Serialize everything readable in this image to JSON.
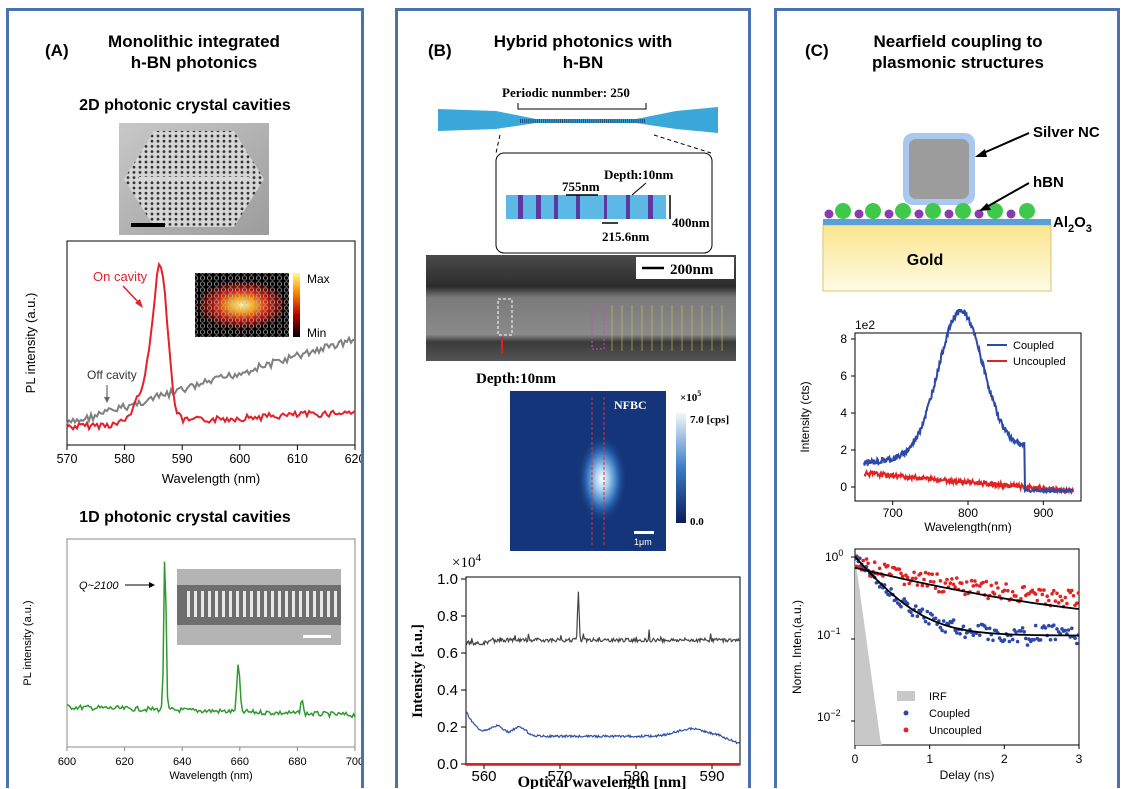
{
  "panelA": {
    "label": "(A)",
    "title_line1": "Monolithic integrated",
    "title_line2": "h-BN photonics",
    "sub1": "2D photonic crystal cavities",
    "sub2": "1D photonic crystal cavities",
    "plot1": {
      "ylabel": "PL intensity (a.u.)",
      "xlabel": "Wavelength (nm)",
      "xticks": [
        "570",
        "580",
        "590",
        "600",
        "610",
        "620"
      ],
      "on_label": "On cavity",
      "off_label": "Off cavity",
      "cbar_max": "Max",
      "cbar_min": "Min"
    },
    "plot2": {
      "ylabel": "PL intensity (a.u.)",
      "xlabel": "Wavelength (nm)",
      "xticks": [
        "600",
        "620",
        "640",
        "660",
        "680",
        "700"
      ],
      "q_label": "Q~2100"
    }
  },
  "panelB": {
    "label": "(B)",
    "title_line1": "Hybrid photonics with",
    "title_line2": "h-BN",
    "periodic": "Periodic nunmber: 250",
    "depth_top": "Depth:10nm",
    "dim_755": "755nm",
    "dim_400": "400nm",
    "dim_2156": "215.6nm",
    "scale_200": "200nm",
    "depth_bottom": "Depth:10nm",
    "map": {
      "label": "NFBC",
      "unit_exp": "×10",
      "unit_pow": "5",
      "cbar_top": "7.0 [cps]",
      "cbar_bottom": "0.0",
      "scale": "1μm"
    },
    "spectrum": {
      "exp": "×10",
      "exp_pow": "4",
      "ylabel": "Intensity [a.u.]",
      "xlabel": "Optical wavelength [nm]",
      "yticks": [
        "0.0",
        "0.2",
        "0.4",
        "0.6",
        "0.8",
        "1.0"
      ],
      "xticks": [
        "560",
        "570",
        "580",
        "590"
      ]
    }
  },
  "panelC": {
    "label": "(C)",
    "title_line1": "Nearfield coupling to",
    "title_line2": "plasmonic structures",
    "silver": "Silver NC",
    "hbn": "hBN",
    "al2o3_main": "Al",
    "al2o3_sub1": "2",
    "al2o3_o": "O",
    "al2o3_sub2": "3",
    "gold": "Gold",
    "plot1": {
      "scale": "1e2",
      "ylabel": "Intensity (cts)",
      "xlabel": "Wavelength(nm)",
      "yticks": [
        "0",
        "2",
        "4",
        "6",
        "8"
      ],
      "xticks": [
        "700",
        "800",
        "900"
      ],
      "legend_coupled": "Coupled",
      "legend_uncoupled": "Uncoupled"
    },
    "plot2": {
      "ylabel": "Norm. Inten.(a.u.)",
      "xlabel": "Delay (ns)",
      "xticks": [
        "0",
        "1",
        "2",
        "3"
      ],
      "ytick_0": "10",
      "ytick_0_exp": "0",
      "ytick_1": "10",
      "ytick_1_exp": "−1",
      "ytick_2": "10",
      "ytick_2_exp": "−2",
      "legend_irf": "IRF",
      "legend_coupled": "Coupled",
      "legend_uncoupled": "Uncoupled"
    }
  },
  "colors": {
    "border": "#4a72b0",
    "on_cavity": "#e3212b",
    "off_cavity": "#808080",
    "green": "#2e9a2e",
    "coupled": "#2c48a8",
    "uncoupled": "#e02424",
    "pc_blue": "#3aa8d8"
  }
}
